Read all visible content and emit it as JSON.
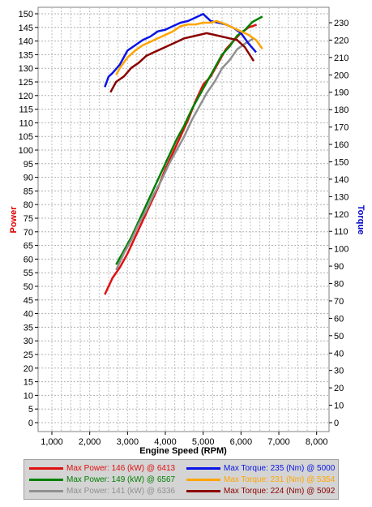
{
  "chart_data": {
    "type": "line",
    "xlabel": "Engine Speed (RPM)",
    "ylabel_left": "Power",
    "ylabel_right": "Torque",
    "xlim": [
      0,
      8000
    ],
    "xticks": [
      "1,000",
      "2,000",
      "3,000",
      "4,000",
      "5,000",
      "6,000",
      "7,000",
      "8,000"
    ],
    "xtick_values": [
      1000,
      2000,
      3000,
      4000,
      5000,
      6000,
      7000,
      8000
    ],
    "ylim_left": [
      0,
      150
    ],
    "yticks_left": [
      0,
      5,
      10,
      15,
      20,
      25,
      30,
      35,
      40,
      45,
      50,
      55,
      60,
      65,
      70,
      75,
      80,
      85,
      90,
      95,
      100,
      105,
      110,
      115,
      120,
      125,
      130,
      135,
      140,
      145,
      150
    ],
    "ylim_right": [
      0,
      230
    ],
    "yticks_right": [
      0,
      10,
      20,
      30,
      40,
      50,
      60,
      70,
      80,
      90,
      100,
      110,
      120,
      130,
      140,
      150,
      160,
      170,
      180,
      190,
      200,
      210,
      220,
      230
    ],
    "grid": true,
    "colors": {
      "left_label": "#dd0000",
      "right_label": "#0000cc"
    },
    "series": [
      {
        "name": "Max Power: 146 (kW) @ 6413",
        "axis": "left",
        "color": "#e01010",
        "x": [
          2400,
          2600,
          2800,
          3000,
          3200,
          3400,
          3600,
          3800,
          4000,
          4200,
          4400,
          4600,
          4800,
          5000,
          5200,
          5400,
          5600,
          5800,
          6000,
          6200,
          6413
        ],
        "y": [
          47,
          53,
          57,
          62,
          68,
          74,
          80,
          86,
          93,
          99,
          105,
          111,
          118,
          124,
          127,
          132,
          137,
          140,
          143,
          145,
          146
        ]
      },
      {
        "name": "Max Power: 149 (kW) @ 6567",
        "axis": "left",
        "color": "#008000",
        "x": [
          2700,
          2900,
          3100,
          3300,
          3500,
          3700,
          3900,
          4100,
          4300,
          4500,
          4700,
          4900,
          5100,
          5300,
          5500,
          5700,
          5900,
          6100,
          6300,
          6567
        ],
        "y": [
          58,
          63,
          68,
          74,
          80,
          86,
          92,
          98,
          104,
          109,
          115,
          120,
          125,
          130,
          135,
          138,
          142,
          144,
          147,
          149
        ]
      },
      {
        "name": "Max Power: 141 (kW) @ 6336",
        "axis": "left",
        "color": "#909090",
        "x": [
          2700,
          2900,
          3100,
          3300,
          3500,
          3700,
          3900,
          4100,
          4300,
          4500,
          4700,
          4900,
          5100,
          5300,
          5500,
          5700,
          5900,
          6100,
          6336
        ],
        "y": [
          56,
          62,
          67,
          73,
          78,
          84,
          89,
          95,
          100,
          105,
          111,
          116,
          121,
          125,
          130,
          133,
          137,
          139,
          141
        ]
      },
      {
        "name": "Max Torque: 235 (Nm) @ 5000",
        "axis": "right",
        "color": "#0a14e6",
        "x": [
          2400,
          2500,
          2600,
          2800,
          3000,
          3200,
          3400,
          3600,
          3800,
          4000,
          4200,
          4400,
          4600,
          4800,
          5000,
          5200,
          5400,
          5600,
          5800,
          6000,
          6200,
          6400
        ],
        "y": [
          193,
          199,
          201,
          206,
          214,
          217,
          220,
          222,
          225,
          226,
          228,
          230,
          231,
          233,
          235,
          231,
          230,
          229,
          227,
          224,
          218,
          213
        ]
      },
      {
        "name": "Max Torque: 231 (Nm) @ 5354",
        "axis": "right",
        "color": "#ffa500",
        "x": [
          2700,
          2800,
          3000,
          3200,
          3400,
          3600,
          3800,
          4000,
          4200,
          4400,
          4600,
          4800,
          5000,
          5200,
          5354,
          5600,
          5800,
          6000,
          6200,
          6400,
          6567
        ],
        "y": [
          200,
          204,
          210,
          214,
          217,
          219,
          221,
          223,
          225,
          228,
          229,
          229,
          230,
          230,
          231,
          229,
          227,
          225,
          223,
          220,
          215
        ]
      },
      {
        "name": "Max Torque: 224 (Nm) @ 5092",
        "axis": "right",
        "color": "#8b0000",
        "x": [
          2550,
          2700,
          2900,
          3100,
          3300,
          3500,
          3700,
          3900,
          4100,
          4300,
          4500,
          4700,
          4900,
          5092,
          5300,
          5500,
          5700,
          5900,
          6100,
          6336
        ],
        "y": [
          190,
          196,
          199,
          204,
          207,
          211,
          213,
          215,
          217,
          219,
          221,
          222,
          223,
          224,
          223,
          222,
          221,
          220,
          216,
          208
        ]
      }
    ]
  }
}
